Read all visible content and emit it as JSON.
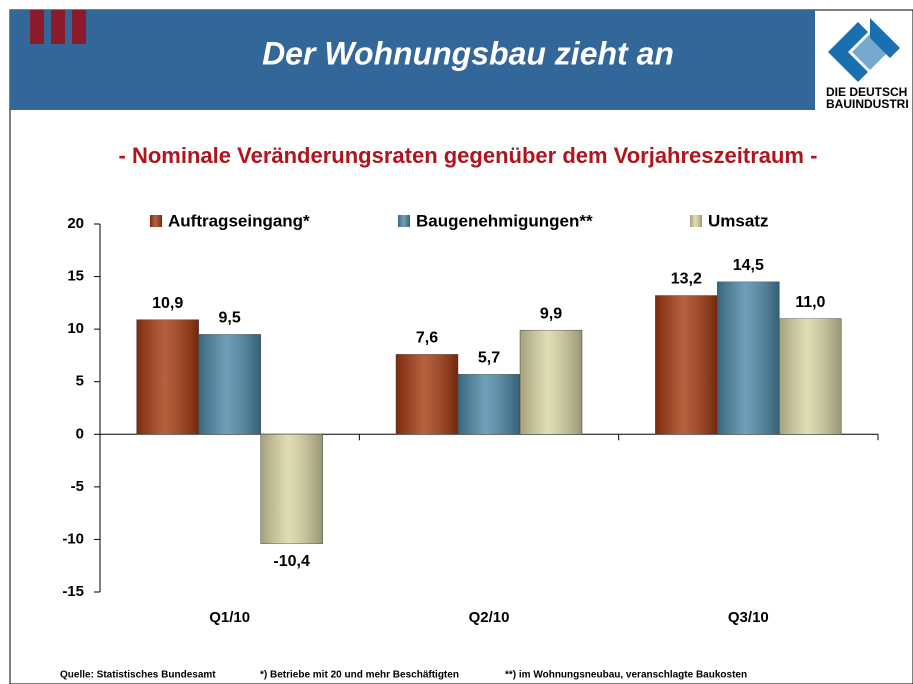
{
  "header": {
    "title": "Der Wohnungsbau zieht an",
    "logo_line1": "DIE DEUTSCH",
    "logo_line2": "BAUINDUSTRI"
  },
  "chart_data": {
    "type": "bar",
    "subtitle": "- Nominale Veränderungsraten gegenüber dem Vorjahreszeitraum -",
    "categories": [
      "Q1/10",
      "Q2/10",
      "Q3/10"
    ],
    "series": [
      {
        "name": "Auftragseingang*",
        "color": "#a3380e",
        "values": [
          10.9,
          7.6,
          13.2
        ],
        "value_labels": [
          "10,9",
          "7,6",
          "13,2"
        ]
      },
      {
        "name": "Baugenehmigungen**",
        "color": "#4a87a6",
        "values": [
          9.5,
          5.7,
          14.5
        ],
        "value_labels": [
          "9,5",
          "5,7",
          "14,5"
        ]
      },
      {
        "name": "Umsatz",
        "color": "#d9d5a3",
        "values": [
          -10.4,
          9.9,
          11.0
        ],
        "value_labels": [
          "-10,4",
          "9,9",
          "11,0"
        ]
      }
    ],
    "ylim": [
      -15,
      20
    ],
    "yticks": [
      -15,
      -10,
      -5,
      0,
      5,
      10,
      15,
      20
    ]
  },
  "footnotes": [
    "Quelle: Statistisches Bundesamt",
    "*) Betriebe mit 20 und mehr Beschäftigten",
    "**) im Wohnungsneubau, veranschlagte Baukosten"
  ]
}
